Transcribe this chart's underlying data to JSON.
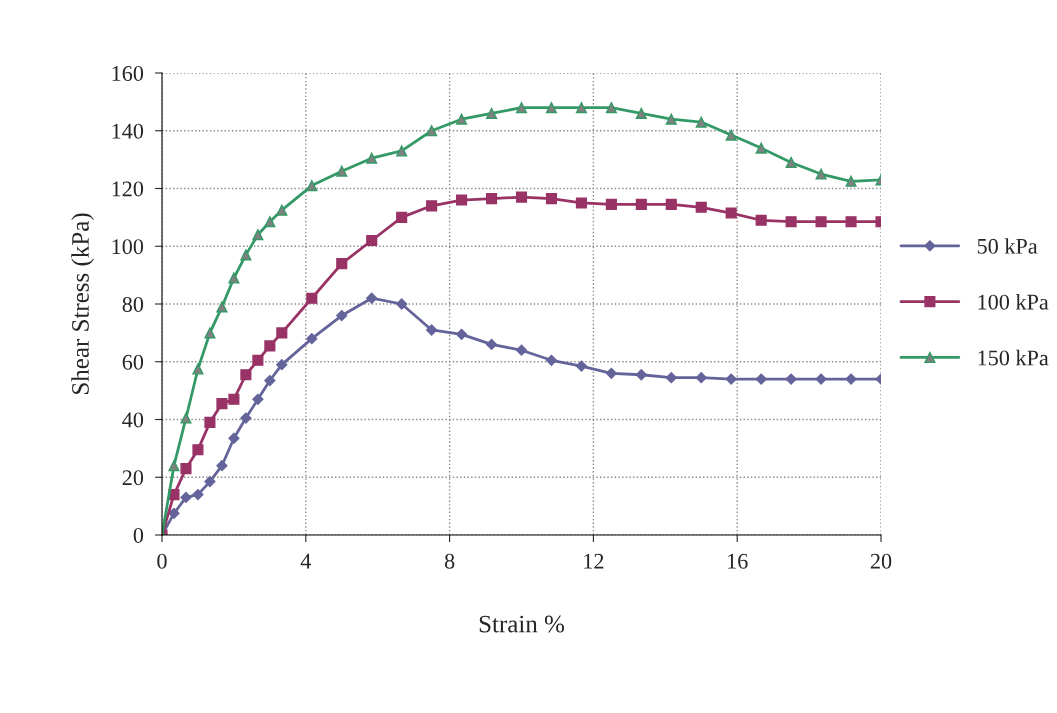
{
  "chart_data": {
    "type": "line",
    "xlabel": "Strain %",
    "ylabel": "Shear Stress (kPa)",
    "x": [
      0,
      0.333,
      0.667,
      1.0,
      1.333,
      1.667,
      2.0,
      2.333,
      2.667,
      3.0,
      3.333,
      4.167,
      5.0,
      5.833,
      6.667,
      7.5,
      8.333,
      9.167,
      10.0,
      10.833,
      11.667,
      12.5,
      13.333,
      14.167,
      15.0,
      15.833,
      16.667,
      17.5,
      18.333,
      19.167,
      20.0
    ],
    "series": [
      {
        "name": "50 kPa",
        "color": "#64649b",
        "marker": "diamond",
        "values": [
          0,
          7.5,
          13,
          14,
          18.5,
          24,
          33.5,
          40.5,
          47,
          53.5,
          59,
          68,
          76,
          82,
          80,
          71,
          69.5,
          66,
          64,
          60.5,
          58.5,
          56,
          55.5,
          54.5,
          54.5,
          54,
          54,
          54,
          54,
          54,
          54
        ]
      },
      {
        "name": "100 kPa",
        "color": "#993366",
        "marker": "square",
        "values": [
          0,
          14,
          23,
          29.5,
          39,
          45.5,
          47,
          55.5,
          60.5,
          65.5,
          70,
          82,
          94,
          102,
          110,
          114,
          116,
          116.5,
          117,
          116.5,
          115,
          114.5,
          114.5,
          114.5,
          113.5,
          111.5,
          109,
          108.5,
          108.5,
          108.5,
          108.5
        ]
      },
      {
        "name": "150 kPa",
        "color": "#339966",
        "marker": "triangle",
        "values": [
          0,
          24,
          40.5,
          57.5,
          70,
          79,
          89,
          97,
          104,
          108.5,
          112.5,
          121,
          126,
          130.5,
          133,
          140,
          144,
          146,
          148,
          148,
          148,
          148,
          146,
          144,
          143,
          138.5,
          134,
          129,
          125,
          122.5,
          123
        ]
      }
    ],
    "xlim": [
      0,
      20
    ],
    "xticks": [
      0,
      4,
      8,
      12,
      16,
      20
    ],
    "ylim": [
      0,
      160
    ],
    "yticks": [
      0,
      20,
      40,
      60,
      80,
      100,
      120,
      140,
      160
    ],
    "grid": true,
    "legend": "right",
    "line_style": "solid"
  }
}
